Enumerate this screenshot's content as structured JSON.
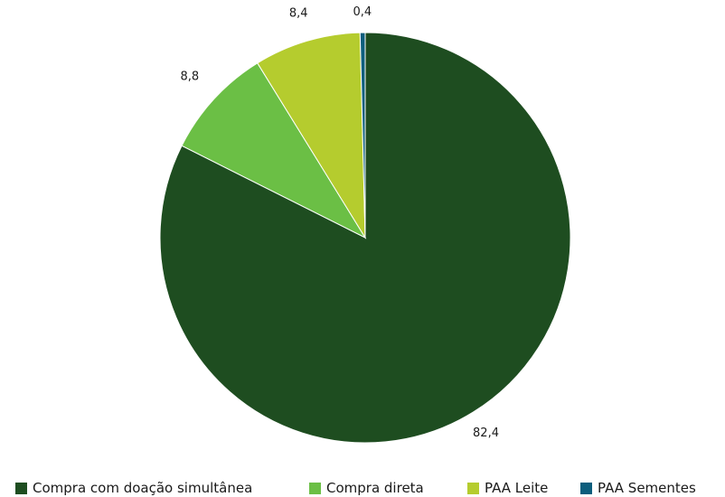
{
  "chart_data": {
    "type": "pie",
    "categories": [
      "Compra com doação simultânea",
      "Compra direta",
      "PAA Leite",
      "PAA Sementes"
    ],
    "values": [
      82.4,
      8.8,
      8.4,
      0.4
    ],
    "data_labels": [
      "82,4",
      "8,8",
      "8,4",
      "0,4"
    ],
    "colors": [
      "#1e4d20",
      "#6bbf45",
      "#b5cc2e",
      "#0d5e7d"
    ],
    "start_angle_deg": 0,
    "direction": "clockwise",
    "legend": {
      "position": "bottom",
      "entries": [
        "Compra com doação simultânea",
        "Compra direta",
        "PAA Leite",
        "PAA Sementes"
      ]
    }
  }
}
